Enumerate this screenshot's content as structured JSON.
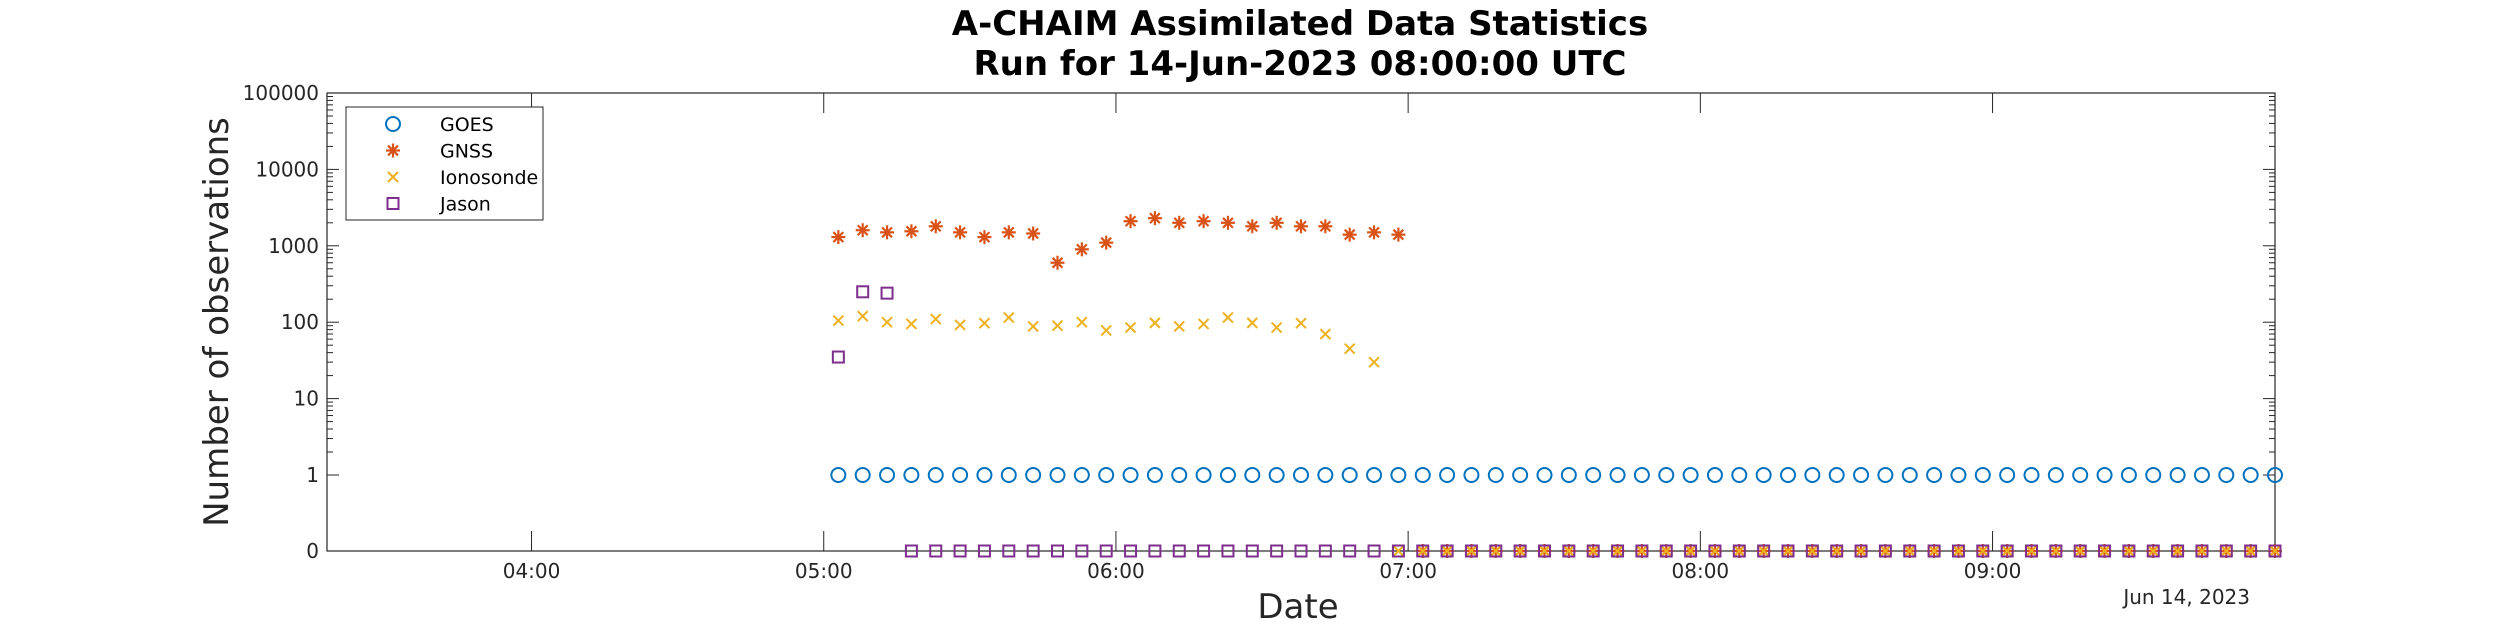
{
  "chart_data": {
    "type": "scatter",
    "title": "A-CHAIM Assimilated Data Statistics",
    "subtitle": "Run for 14-Jun-2023 08:00:00 UTC",
    "xlabel": "Date",
    "ylabel": "Number of observations",
    "date_label": "Jun 14, 2023",
    "x_scale": "time",
    "y_scale": "log",
    "xlim": [
      "03:18",
      "09:58"
    ],
    "ylim": [
      0,
      100000
    ],
    "x_ticks": [
      "04:00",
      "05:00",
      "06:00",
      "07:00",
      "08:00",
      "09:00"
    ],
    "y_ticks": [
      "0",
      "1",
      "10",
      "100",
      "1000",
      "10000",
      "100000"
    ],
    "legend_position": "top-left",
    "grid": false,
    "series": [
      {
        "name": "GOES",
        "marker": "circle",
        "color": "#0072BD",
        "x": [
          "05:03",
          "05:08",
          "05:13",
          "05:18",
          "05:23",
          "05:28",
          "05:33",
          "05:38",
          "05:43",
          "05:48",
          "05:53",
          "05:58",
          "06:03",
          "06:08",
          "06:13",
          "06:18",
          "06:23",
          "06:28",
          "06:33",
          "06:38",
          "06:43",
          "06:48",
          "06:53",
          "06:58",
          "07:03",
          "07:08",
          "07:13",
          "07:18",
          "07:23",
          "07:28",
          "07:33",
          "07:38",
          "07:43",
          "07:48",
          "07:53",
          "07:58",
          "08:03",
          "08:08",
          "08:13",
          "08:18",
          "08:23",
          "08:28",
          "08:33",
          "08:38",
          "08:43",
          "08:48",
          "08:53",
          "08:58",
          "09:03",
          "09:08",
          "09:13",
          "09:18",
          "09:23",
          "09:28",
          "09:33",
          "09:38",
          "09:43",
          "09:48",
          "09:53",
          "09:58"
        ],
        "y": [
          1,
          1,
          1,
          1,
          1,
          1,
          1,
          1,
          1,
          1,
          1,
          1,
          1,
          1,
          1,
          1,
          1,
          1,
          1,
          1,
          1,
          1,
          1,
          1,
          1,
          1,
          1,
          1,
          1,
          1,
          1,
          1,
          1,
          1,
          1,
          1,
          1,
          1,
          1,
          1,
          1,
          1,
          1,
          1,
          1,
          1,
          1,
          1,
          1,
          1,
          1,
          1,
          1,
          1,
          1,
          1,
          1,
          1,
          1,
          1
        ]
      },
      {
        "name": "GNSS",
        "marker": "asterisk",
        "color": "#D95319",
        "x": [
          "05:03",
          "05:08",
          "05:13",
          "05:18",
          "05:23",
          "05:28",
          "05:33",
          "05:38",
          "05:43",
          "05:48",
          "05:53",
          "05:58",
          "06:03",
          "06:08",
          "06:13",
          "06:18",
          "06:23",
          "06:28",
          "06:33",
          "06:38",
          "06:43",
          "06:48",
          "06:53",
          "06:58",
          "07:03",
          "07:08",
          "07:13",
          "07:18",
          "07:23",
          "07:28",
          "07:33",
          "07:38",
          "07:43",
          "07:48",
          "07:53",
          "07:58",
          "08:03",
          "08:08",
          "08:13",
          "08:18",
          "08:23",
          "08:28",
          "08:33",
          "08:38",
          "08:43",
          "08:48",
          "08:53",
          "08:58",
          "09:03",
          "09:08",
          "09:13",
          "09:18",
          "09:23",
          "09:28",
          "09:33",
          "09:38",
          "09:43",
          "09:48",
          "09:53",
          "09:58"
        ],
        "y": [
          1300,
          1600,
          1500,
          1550,
          1800,
          1500,
          1300,
          1500,
          1450,
          600,
          900,
          1100,
          2100,
          2300,
          2000,
          2100,
          2000,
          1800,
          2000,
          1800,
          1800,
          1400,
          1500,
          1400,
          0,
          0,
          0,
          0,
          0,
          0,
          0,
          0,
          0,
          0,
          0,
          0,
          0,
          0,
          0,
          0,
          0,
          0,
          0,
          0,
          0,
          0,
          0,
          0,
          0,
          0,
          0,
          0,
          0,
          0,
          0,
          0,
          0,
          0,
          0,
          0
        ]
      },
      {
        "name": "Ionosonde",
        "marker": "x",
        "color": "#EDB120",
        "x": [
          "05:03",
          "05:08",
          "05:13",
          "05:18",
          "05:23",
          "05:28",
          "05:33",
          "05:38",
          "05:43",
          "05:48",
          "05:53",
          "05:58",
          "06:03",
          "06:08",
          "06:13",
          "06:18",
          "06:23",
          "06:28",
          "06:33",
          "06:38",
          "06:43",
          "06:48",
          "06:53",
          "06:58",
          "07:03",
          "07:08",
          "07:13",
          "07:18",
          "07:23",
          "07:28",
          "07:33",
          "07:38",
          "07:43",
          "07:48",
          "07:53",
          "07:58",
          "08:03",
          "08:08",
          "08:13",
          "08:18",
          "08:23",
          "08:28",
          "08:33",
          "08:38",
          "08:43",
          "08:48",
          "08:53",
          "08:58",
          "09:03",
          "09:08",
          "09:13",
          "09:18",
          "09:23",
          "09:28",
          "09:33",
          "09:38",
          "09:43",
          "09:48",
          "09:53",
          "09:58"
        ],
        "y": [
          105,
          120,
          100,
          95,
          110,
          92,
          97,
          115,
          88,
          90,
          100,
          78,
          85,
          98,
          88,
          95,
          115,
          98,
          85,
          97,
          70,
          45,
          30,
          0,
          0,
          0,
          0,
          0,
          0,
          0,
          0,
          0,
          0,
          0,
          0,
          0,
          0,
          0,
          0,
          0,
          0,
          0,
          0,
          0,
          0,
          0,
          0,
          0,
          0,
          0,
          0,
          0,
          0,
          0,
          0,
          0,
          0,
          0,
          0,
          0
        ]
      },
      {
        "name": "Jason",
        "marker": "square",
        "color": "#7E2F8E",
        "x": [
          "05:03",
          "05:08",
          "05:13",
          "05:18",
          "05:23",
          "05:28",
          "05:33",
          "05:38",
          "05:43",
          "05:48",
          "05:53",
          "05:58",
          "06:03",
          "06:08",
          "06:13",
          "06:18",
          "06:23",
          "06:28",
          "06:33",
          "06:38",
          "06:43",
          "06:48",
          "06:53",
          "06:58",
          "07:03",
          "07:08",
          "07:13",
          "07:18",
          "07:23",
          "07:28",
          "07:33",
          "07:38",
          "07:43",
          "07:48",
          "07:53",
          "07:58",
          "08:03",
          "08:08",
          "08:13",
          "08:18",
          "08:23",
          "08:28",
          "08:33",
          "08:38",
          "08:43",
          "08:48",
          "08:53",
          "08:58",
          "09:03",
          "09:08",
          "09:13",
          "09:18",
          "09:23",
          "09:28",
          "09:33",
          "09:38",
          "09:43",
          "09:48",
          "09:53",
          "09:58"
        ],
        "y": [
          35,
          250,
          240,
          0,
          0,
          0,
          0,
          0,
          0,
          0,
          0,
          0,
          0,
          0,
          0,
          0,
          0,
          0,
          0,
          0,
          0,
          0,
          0,
          0,
          0,
          0,
          0,
          0,
          0,
          0,
          0,
          0,
          0,
          0,
          0,
          0,
          0,
          0,
          0,
          0,
          0,
          0,
          0,
          0,
          0,
          0,
          0,
          0,
          0,
          0,
          0,
          0,
          0,
          0,
          0,
          0,
          0,
          0,
          0,
          0
        ]
      }
    ]
  }
}
